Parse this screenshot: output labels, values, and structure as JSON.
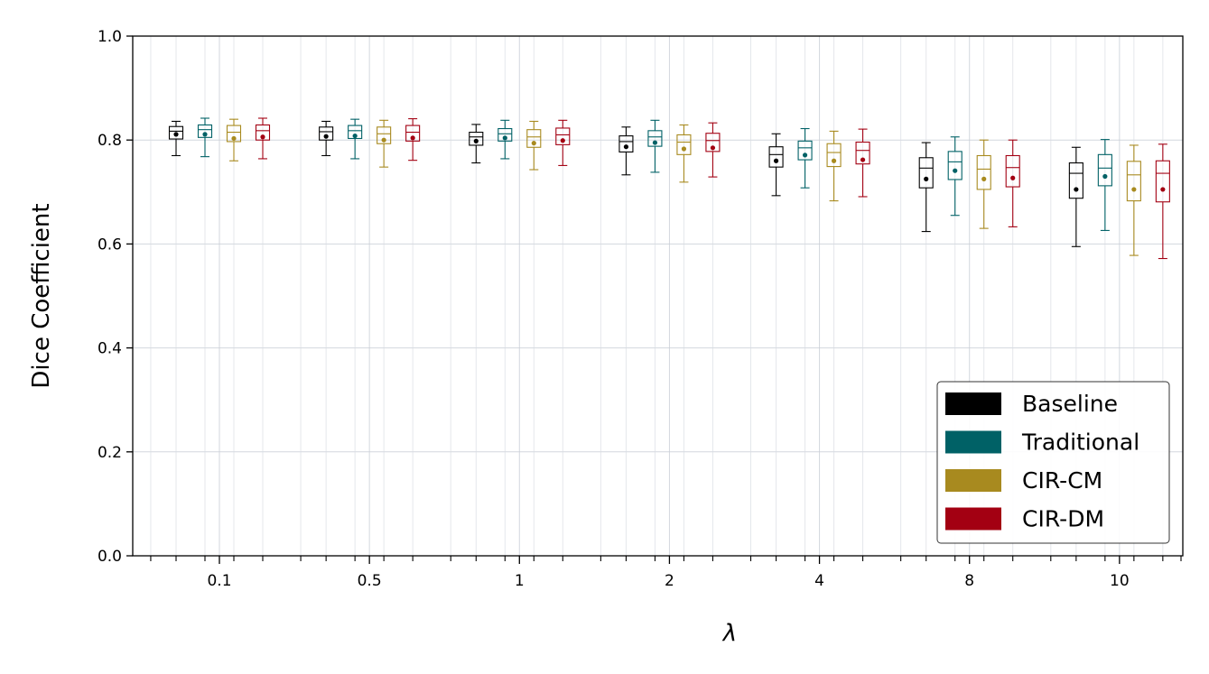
{
  "chart_data": {
    "type": "box",
    "ylabel": "Dice Coefficient",
    "xlabel": "λ",
    "ylim": [
      0.0,
      1.0
    ],
    "yticks": [
      "0.0",
      "0.2",
      "0.4",
      "0.6",
      "0.8",
      "1.0"
    ],
    "categories": [
      "0.1",
      "0.5",
      "1",
      "2",
      "4",
      "8",
      "10"
    ],
    "grid": true,
    "legend_position": "bottom-right",
    "series": [
      {
        "name": "Baseline",
        "color": "#000000",
        "boxes": [
          {
            "whislo": 0.77,
            "q1": 0.802,
            "med": 0.817,
            "q3": 0.826,
            "whishi": 0.836,
            "mean": 0.811
          },
          {
            "whislo": 0.77,
            "q1": 0.8,
            "med": 0.816,
            "q3": 0.825,
            "whishi": 0.836,
            "mean": 0.807
          },
          {
            "whislo": 0.756,
            "q1": 0.79,
            "med": 0.806,
            "q3": 0.815,
            "whishi": 0.83,
            "mean": 0.798
          },
          {
            "whislo": 0.733,
            "q1": 0.777,
            "med": 0.797,
            "q3": 0.808,
            "whishi": 0.825,
            "mean": 0.787
          },
          {
            "whislo": 0.693,
            "q1": 0.748,
            "med": 0.772,
            "q3": 0.787,
            "whishi": 0.812,
            "mean": 0.76
          },
          {
            "whislo": 0.624,
            "q1": 0.708,
            "med": 0.746,
            "q3": 0.766,
            "whishi": 0.795,
            "mean": 0.725
          },
          {
            "whislo": 0.595,
            "q1": 0.688,
            "med": 0.736,
            "q3": 0.756,
            "whishi": 0.786,
            "mean": 0.705
          }
        ]
      },
      {
        "name": "Traditional",
        "color": "#006166",
        "boxes": [
          {
            "whislo": 0.768,
            "q1": 0.805,
            "med": 0.82,
            "q3": 0.829,
            "whishi": 0.842,
            "mean": 0.811
          },
          {
            "whislo": 0.764,
            "q1": 0.803,
            "med": 0.818,
            "q3": 0.828,
            "whishi": 0.84,
            "mean": 0.808
          },
          {
            "whislo": 0.764,
            "q1": 0.798,
            "med": 0.812,
            "q3": 0.822,
            "whishi": 0.838,
            "mean": 0.804
          },
          {
            "whislo": 0.738,
            "q1": 0.788,
            "med": 0.806,
            "q3": 0.818,
            "whishi": 0.838,
            "mean": 0.795
          },
          {
            "whislo": 0.708,
            "q1": 0.762,
            "med": 0.785,
            "q3": 0.798,
            "whishi": 0.822,
            "mean": 0.771
          },
          {
            "whislo": 0.655,
            "q1": 0.724,
            "med": 0.758,
            "q3": 0.778,
            "whishi": 0.806,
            "mean": 0.741
          },
          {
            "whislo": 0.626,
            "q1": 0.712,
            "med": 0.746,
            "q3": 0.772,
            "whishi": 0.801,
            "mean": 0.73
          }
        ]
      },
      {
        "name": "CIR-CM",
        "color": "#a88a1f",
        "boxes": [
          {
            "whislo": 0.76,
            "q1": 0.797,
            "med": 0.815,
            "q3": 0.828,
            "whishi": 0.84,
            "mean": 0.803
          },
          {
            "whislo": 0.748,
            "q1": 0.793,
            "med": 0.812,
            "q3": 0.825,
            "whishi": 0.838,
            "mean": 0.8
          },
          {
            "whislo": 0.743,
            "q1": 0.786,
            "med": 0.806,
            "q3": 0.82,
            "whishi": 0.836,
            "mean": 0.794
          },
          {
            "whislo": 0.719,
            "q1": 0.772,
            "med": 0.796,
            "q3": 0.81,
            "whishi": 0.829,
            "mean": 0.783
          },
          {
            "whislo": 0.683,
            "q1": 0.749,
            "med": 0.776,
            "q3": 0.793,
            "whishi": 0.817,
            "mean": 0.76
          },
          {
            "whislo": 0.63,
            "q1": 0.705,
            "med": 0.744,
            "q3": 0.77,
            "whishi": 0.8,
            "mean": 0.725
          },
          {
            "whislo": 0.578,
            "q1": 0.683,
            "med": 0.733,
            "q3": 0.759,
            "whishi": 0.79,
            "mean": 0.705
          }
        ]
      },
      {
        "name": "CIR-DM",
        "color": "#a30012",
        "boxes": [
          {
            "whislo": 0.764,
            "q1": 0.8,
            "med": 0.818,
            "q3": 0.829,
            "whishi": 0.842,
            "mean": 0.806
          },
          {
            "whislo": 0.761,
            "q1": 0.798,
            "med": 0.815,
            "q3": 0.828,
            "whishi": 0.841,
            "mean": 0.804
          },
          {
            "whislo": 0.751,
            "q1": 0.791,
            "med": 0.81,
            "q3": 0.823,
            "whishi": 0.838,
            "mean": 0.799
          },
          {
            "whislo": 0.729,
            "q1": 0.778,
            "med": 0.799,
            "q3": 0.813,
            "whishi": 0.833,
            "mean": 0.785
          },
          {
            "whislo": 0.691,
            "q1": 0.754,
            "med": 0.78,
            "q3": 0.796,
            "whishi": 0.821,
            "mean": 0.762
          },
          {
            "whislo": 0.633,
            "q1": 0.71,
            "med": 0.747,
            "q3": 0.77,
            "whishi": 0.8,
            "mean": 0.727
          },
          {
            "whislo": 0.572,
            "q1": 0.681,
            "med": 0.736,
            "q3": 0.76,
            "whishi": 0.792,
            "mean": 0.705
          }
        ]
      }
    ]
  }
}
